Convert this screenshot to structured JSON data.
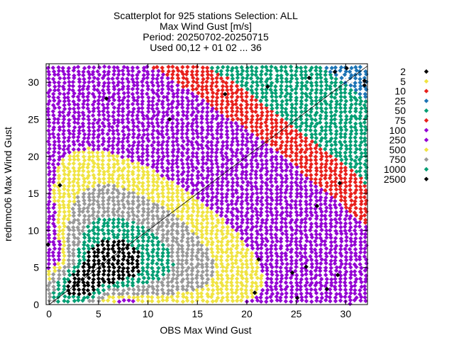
{
  "chart_data": {
    "type": "scatter",
    "title_lines": [
      "Scatterplot for  925 stations Selection: ALL",
      "Max Wind Gust [m/s]",
      "Period: 20250702-20250715",
      "Used 00,12 + 01 02 ... 36"
    ],
    "xlabel": "OBS Max Wind Gust",
    "ylabel": "rednmc06 Max Wind Gust",
    "xlim": [
      -0.3,
      32.2
    ],
    "ylim": [
      0,
      32.5
    ],
    "xticks": [
      0,
      5,
      10,
      15,
      20,
      25,
      30
    ],
    "yticks": [
      0,
      5,
      10,
      15,
      20,
      25,
      30
    ],
    "grid": true,
    "diagonal_line": true,
    "legend_title": "",
    "legend_placement": "right",
    "legend": [
      {
        "label": "2",
        "color": "#000000",
        "radius": 14.5
      },
      {
        "label": "5",
        "color": "#f0e442",
        "radius": 12.8
      },
      {
        "label": "10",
        "color": "#e8201c",
        "radius": 10.6
      },
      {
        "label": "25",
        "color": "#1d74b5",
        "radius": 9.0
      },
      {
        "label": "50",
        "color": "#009e73",
        "radius": 8.0
      },
      {
        "label": "75",
        "color": "#e8201c",
        "radius": 6.3
      },
      {
        "label": "100",
        "color": "#9400d3",
        "radius": 5.5
      },
      {
        "label": "250",
        "color": "#9400d3",
        "radius": 4.4
      },
      {
        "label": "500",
        "color": "#f0e442",
        "radius": 3.3
      },
      {
        "label": "750",
        "color": "#999999",
        "radius": 2.6
      },
      {
        "label": "1000",
        "color": "#009e73",
        "radius": 1.9
      },
      {
        "label": "2500",
        "color": "#000000",
        "radius": 1.3
      }
    ],
    "band_center": [
      [
        0,
        0
      ],
      [
        3,
        2.3
      ],
      [
        6,
        5
      ],
      [
        9,
        7.7
      ],
      [
        12,
        10.5
      ],
      [
        15,
        13
      ],
      [
        18,
        15.5
      ],
      [
        21,
        18
      ],
      [
        24,
        20.8
      ],
      [
        27,
        23.5
      ],
      [
        30,
        26
      ]
    ],
    "outliers": [
      {
        "x": 5.8,
        "y": 27.8
      },
      {
        "x": 12.2,
        "y": 25.0
      },
      {
        "x": 17.8,
        "y": 28.4
      },
      {
        "x": 22.1,
        "y": 29.4
      },
      {
        "x": 26.3,
        "y": 30.6
      },
      {
        "x": 28.9,
        "y": 31.4
      },
      {
        "x": 30.1,
        "y": 31.9
      },
      {
        "x": 31.9,
        "y": 30.2
      },
      {
        "x": 31.9,
        "y": 29.6
      },
      {
        "x": 21.2,
        "y": 6.1
      },
      {
        "x": 24.6,
        "y": 4.3
      },
      {
        "x": 26.0,
        "y": 5.1
      },
      {
        "x": 29.4,
        "y": 16.4
      },
      {
        "x": 27.1,
        "y": 13.3
      },
      {
        "x": 25.1,
        "y": 0.9
      },
      {
        "x": 29.2,
        "y": 4.0
      },
      {
        "x": 28.1,
        "y": 2.1
      },
      {
        "x": 20.8,
        "y": 1.6
      },
      {
        "x": 1.1,
        "y": 16.1
      },
      {
        "x": -0.1,
        "y": 8.1
      }
    ]
  }
}
